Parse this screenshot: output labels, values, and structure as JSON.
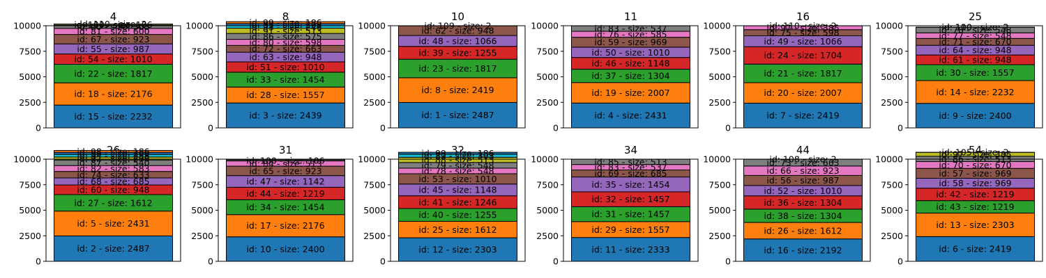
{
  "chart_data": [
    {
      "type": "bar",
      "title": "4",
      "ylim": [
        0,
        10000
      ],
      "yticks": [
        0,
        2500,
        5000,
        7500,
        10000
      ],
      "segments": [
        {
          "id": 15,
          "size": 2232
        },
        {
          "id": 18,
          "size": 2176
        },
        {
          "id": 22,
          "size": 1817
        },
        {
          "id": 54,
          "size": 1010
        },
        {
          "id": 55,
          "size": 987
        },
        {
          "id": 67,
          "size": 923
        },
        {
          "id": 81,
          "size": 600
        },
        {
          "id": 90,
          "size": 303
        },
        {
          "id": 100,
          "size": 106
        },
        {
          "id": 110,
          "size": 2
        }
      ]
    },
    {
      "type": "bar",
      "title": "8",
      "ylim": [
        0,
        10000
      ],
      "yticks": [
        0,
        2500,
        5000,
        7500,
        10000
      ],
      "segments": [
        {
          "id": 3,
          "size": 2439
        },
        {
          "id": 28,
          "size": 1557
        },
        {
          "id": 33,
          "size": 1454
        },
        {
          "id": 51,
          "size": 1010
        },
        {
          "id": 63,
          "size": 948
        },
        {
          "id": 72,
          "size": 663
        },
        {
          "id": 80,
          "size": 598
        },
        {
          "id": 86,
          "size": 575
        },
        {
          "id": 91,
          "size": 513
        },
        {
          "id": 93,
          "size": 246
        },
        {
          "id": 95,
          "size": 208
        },
        {
          "id": 99,
          "size": 186
        }
      ]
    },
    {
      "type": "bar",
      "title": "10",
      "ylim": [
        0,
        10000
      ],
      "yticks": [
        0,
        2500,
        5000,
        7500,
        10000
      ],
      "segments": [
        {
          "id": 1,
          "size": 2487
        },
        {
          "id": 8,
          "size": 2419
        },
        {
          "id": 23,
          "size": 1817
        },
        {
          "id": 39,
          "size": 1255
        },
        {
          "id": 48,
          "size": 1066
        },
        {
          "id": 62,
          "size": 948
        },
        {
          "id": 109,
          "size": 2
        }
      ]
    },
    {
      "type": "bar",
      "title": "11",
      "ylim": [
        0,
        10000
      ],
      "yticks": [
        0,
        2500,
        5000,
        7500,
        10000
      ],
      "segments": [
        {
          "id": 4,
          "size": 2431
        },
        {
          "id": 19,
          "size": 2007
        },
        {
          "id": 37,
          "size": 1304
        },
        {
          "id": 46,
          "size": 1148
        },
        {
          "id": 50,
          "size": 1010
        },
        {
          "id": 59,
          "size": 969
        },
        {
          "id": 76,
          "size": 585
        },
        {
          "id": 83,
          "size": 537
        }
      ]
    },
    {
      "type": "bar",
      "title": "16",
      "ylim": [
        0,
        10000
      ],
      "yticks": [
        0,
        2500,
        5000,
        7500,
        10000
      ],
      "segments": [
        {
          "id": 7,
          "size": 2419
        },
        {
          "id": 20,
          "size": 2007
        },
        {
          "id": 21,
          "size": 1817
        },
        {
          "id": 24,
          "size": 1704
        },
        {
          "id": 49,
          "size": 1066
        },
        {
          "id": 75,
          "size": 598
        },
        {
          "id": 97,
          "size": 385
        },
        {
          "id": 110,
          "size": 2
        }
      ]
    },
    {
      "type": "bar",
      "title": "25",
      "ylim": [
        0,
        10000
      ],
      "yticks": [
        0,
        2500,
        5000,
        7500,
        10000
      ],
      "segments": [
        {
          "id": 9,
          "size": 2400
        },
        {
          "id": 14,
          "size": 2232
        },
        {
          "id": 30,
          "size": 1557
        },
        {
          "id": 61,
          "size": 948
        },
        {
          "id": 64,
          "size": 948
        },
        {
          "id": 71,
          "size": 670
        },
        {
          "id": 77,
          "size": 548
        },
        {
          "id": 78,
          "size": 548
        },
        {
          "id": 100,
          "size": 2
        },
        {
          "id": 110,
          "size": 2
        }
      ]
    },
    {
      "type": "bar",
      "title": "26",
      "ylim": [
        0,
        10000
      ],
      "yticks": [
        0,
        2500,
        5000,
        7500,
        10000
      ],
      "segments": [
        {
          "id": 2,
          "size": 2487
        },
        {
          "id": 5,
          "size": 2431
        },
        {
          "id": 27,
          "size": 1612
        },
        {
          "id": 60,
          "size": 948
        },
        {
          "id": 68,
          "size": 685
        },
        {
          "id": 74,
          "size": 633
        },
        {
          "id": 82,
          "size": 583
        },
        {
          "id": 87,
          "size": 540
        },
        {
          "id": 92,
          "size": 290
        },
        {
          "id": 94,
          "size": 258
        },
        {
          "id": 96,
          "size": 200
        },
        {
          "id": 98,
          "size": 186
        }
      ]
    },
    {
      "type": "bar",
      "title": "31",
      "ylim": [
        0,
        10000
      ],
      "yticks": [
        0,
        2500,
        5000,
        7500,
        10000
      ],
      "segments": [
        {
          "id": 10,
          "size": 2400
        },
        {
          "id": 17,
          "size": 2176
        },
        {
          "id": 34,
          "size": 1454
        },
        {
          "id": 44,
          "size": 1219
        },
        {
          "id": 47,
          "size": 1142
        },
        {
          "id": 65,
          "size": 923
        },
        {
          "id": 84,
          "size": 513
        },
        {
          "id": 100,
          "size": 106
        }
      ]
    },
    {
      "type": "bar",
      "title": "32",
      "ylim": [
        0,
        10000
      ],
      "yticks": [
        0,
        2500,
        5000,
        7500,
        10000
      ],
      "segments": [
        {
          "id": 12,
          "size": 2303
        },
        {
          "id": 25,
          "size": 1612
        },
        {
          "id": 40,
          "size": 1255
        },
        {
          "id": 41,
          "size": 1246
        },
        {
          "id": 45,
          "size": 1148
        },
        {
          "id": 53,
          "size": 1010
        },
        {
          "id": 78,
          "size": 548
        },
        {
          "id": 79,
          "size": 548
        },
        {
          "id": 88,
          "size": 513
        },
        {
          "id": 89,
          "size": 303
        },
        {
          "id": 99,
          "size": 186
        }
      ]
    },
    {
      "type": "bar",
      "title": "34",
      "ylim": [
        0,
        10000
      ],
      "yticks": [
        0,
        2500,
        5000,
        7500,
        10000
      ],
      "segments": [
        {
          "id": 11,
          "size": 2333
        },
        {
          "id": 29,
          "size": 1557
        },
        {
          "id": 31,
          "size": 1457
        },
        {
          "id": 32,
          "size": 1457
        },
        {
          "id": 35,
          "size": 1454
        },
        {
          "id": 69,
          "size": 685
        },
        {
          "id": 83,
          "size": 537
        },
        {
          "id": 85,
          "size": 513
        }
      ]
    },
    {
      "type": "bar",
      "title": "44",
      "ylim": [
        0,
        10000
      ],
      "yticks": [
        0,
        2500,
        5000,
        7500,
        10000
      ],
      "segments": [
        {
          "id": 16,
          "size": 2192
        },
        {
          "id": 26,
          "size": 1612
        },
        {
          "id": 38,
          "size": 1304
        },
        {
          "id": 36,
          "size": 1304
        },
        {
          "id": 52,
          "size": 1010
        },
        {
          "id": 56,
          "size": 987
        },
        {
          "id": 66,
          "size": 923
        },
        {
          "id": 73,
          "size": 663
        },
        {
          "id": 108,
          "size": 2
        }
      ]
    },
    {
      "type": "bar",
      "title": "54",
      "ylim": [
        0,
        10000
      ],
      "yticks": [
        0,
        2500,
        5000,
        7500,
        10000
      ],
      "segments": [
        {
          "id": 6,
          "size": 2419
        },
        {
          "id": 13,
          "size": 2303
        },
        {
          "id": 43,
          "size": 1219
        },
        {
          "id": 42,
          "size": 1219
        },
        {
          "id": 58,
          "size": 969
        },
        {
          "id": 57,
          "size": 969
        },
        {
          "id": 70,
          "size": 670
        },
        {
          "id": 86,
          "size": 513
        },
        {
          "id": 97,
          "size": 385
        },
        {
          "id": 105,
          "size": 2
        }
      ]
    }
  ],
  "colors": [
    "#1f77b4",
    "#ff7f0e",
    "#2ca02c",
    "#d62728",
    "#9467bd",
    "#8c564b",
    "#e377c2",
    "#7f7f7f",
    "#bcbd22",
    "#17becf"
  ]
}
